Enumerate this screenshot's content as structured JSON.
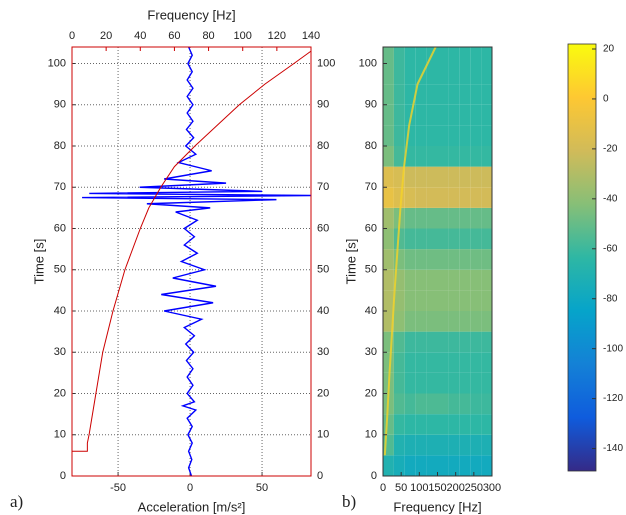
{
  "chart_data": [
    {
      "type": "line",
      "panel_label": "a)",
      "xlabel": "Acceleration [m/s²]",
      "x2label": "Frequency [Hz]",
      "ylabel": "Time [s]",
      "xlim": [
        -82,
        84
      ],
      "xticks": [
        -50,
        0,
        50
      ],
      "x2lim": [
        0,
        140
      ],
      "x2ticks": [
        0,
        20,
        40,
        60,
        80,
        100,
        120,
        140
      ],
      "ylim": [
        0,
        104
      ],
      "yticks": [
        0,
        10,
        20,
        30,
        40,
        50,
        60,
        70,
        80,
        90,
        100
      ],
      "grid": true,
      "mirror_yticks": true,
      "series": [
        {
          "color": "#0000ff",
          "y": [
            0,
            2,
            4,
            6,
            8,
            10,
            12,
            14,
            16,
            17,
            18,
            20,
            22,
            24,
            26,
            28,
            30,
            32,
            34,
            36,
            38,
            40,
            42,
            44,
            46,
            48,
            50,
            52,
            54,
            56,
            58,
            60,
            62,
            64,
            65,
            66,
            67,
            67.5,
            68,
            68.5,
            69,
            70,
            71,
            72,
            74,
            76,
            78,
            80,
            82,
            84,
            86,
            88,
            90,
            92,
            94,
            96,
            98,
            100,
            102,
            104
          ],
          "values": [
            1,
            -1,
            1.2,
            -1,
            1.5,
            -1.5,
            1.5,
            -2,
            4,
            -5,
            3,
            -2,
            2,
            -2,
            2,
            -2.5,
            2.5,
            -3,
            3,
            -4,
            8,
            -18,
            16,
            -20,
            18,
            -12,
            10,
            -6,
            5,
            -4,
            3,
            -4,
            5,
            -10,
            14,
            -30,
            60,
            -75,
            84,
            -70,
            50,
            -35,
            25,
            -18,
            15,
            -8,
            4,
            -3,
            2.5,
            -2.5,
            2,
            -2,
            2,
            -2,
            2,
            -2,
            1.5,
            -1.5,
            1.5,
            -1
          ]
        },
        {
          "color": "#cc0000",
          "axis": "x2",
          "y": [
            6,
            6,
            8,
            10,
            15,
            20,
            30,
            40,
            50,
            60,
            65,
            70,
            75,
            80,
            85,
            90,
            95,
            100,
            103
          ],
          "values": [
            0,
            9,
            9,
            10,
            12,
            14,
            18,
            24,
            31,
            40,
            45,
            52,
            60,
            72,
            85,
            98,
            113,
            130,
            140
          ]
        }
      ]
    },
    {
      "type": "heatmap",
      "panel_label": "b)",
      "xlabel": "Frequency [Hz]",
      "ylabel": "Time [s]",
      "xlim": [
        0,
        300
      ],
      "xticks": [
        0,
        50,
        100,
        150,
        200,
        250,
        300
      ],
      "ylim": [
        0,
        104
      ],
      "yticks": [
        0,
        10,
        20,
        30,
        40,
        50,
        60,
        70,
        80,
        90,
        100
      ],
      "xbins": [
        0,
        30,
        60,
        90,
        120,
        150,
        180,
        210,
        240,
        270,
        300
      ],
      "ybins": [
        0,
        5,
        10,
        15,
        20,
        25,
        30,
        35,
        40,
        45,
        50,
        55,
        60,
        65,
        70,
        75,
        80,
        85,
        90,
        95,
        100,
        104
      ],
      "values": [
        [
          -70,
          -75,
          -78,
          -78,
          -78,
          -78,
          -78,
          -78,
          -78,
          -78
        ],
        [
          -55,
          -70,
          -72,
          -72,
          -72,
          -72,
          -72,
          -72,
          -72,
          -72
        ],
        [
          -50,
          -62,
          -64,
          -64,
          -64,
          -64,
          -64,
          -64,
          -64,
          -64
        ],
        [
          -45,
          -55,
          -58,
          -56,
          -56,
          -56,
          -58,
          -58,
          -60,
          -60
        ],
        [
          -45,
          -58,
          -62,
          -62,
          -62,
          -62,
          -62,
          -62,
          -62,
          -62
        ],
        [
          -45,
          -58,
          -62,
          -62,
          -62,
          -62,
          -62,
          -62,
          -62,
          -62
        ],
        [
          -45,
          -55,
          -60,
          -60,
          -60,
          -60,
          -60,
          -60,
          -60,
          -60
        ],
        [
          -30,
          -40,
          -45,
          -45,
          -45,
          -45,
          -45,
          -45,
          -45,
          -45
        ],
        [
          -30,
          -38,
          -42,
          -42,
          -42,
          -42,
          -42,
          -42,
          -42,
          -42
        ],
        [
          -30,
          -38,
          -42,
          -42,
          -42,
          -42,
          -42,
          -42,
          -42,
          -42
        ],
        [
          -35,
          -45,
          -48,
          -48,
          -48,
          -48,
          -48,
          -48,
          -48,
          -48
        ],
        [
          -40,
          -55,
          -58,
          -58,
          -58,
          -58,
          -58,
          -58,
          -58,
          -58
        ],
        [
          -35,
          -45,
          -50,
          -50,
          -50,
          -50,
          -50,
          -50,
          -50,
          -50
        ],
        [
          -10,
          -15,
          -18,
          -20,
          -20,
          -20,
          -20,
          -20,
          -20,
          -20
        ],
        [
          -15,
          -18,
          -22,
          -22,
          -22,
          -22,
          -22,
          -22,
          -22,
          -22
        ],
        [
          -45,
          -58,
          -62,
          -62,
          -62,
          -62,
          -62,
          -62,
          -62,
          -62
        ],
        [
          -50,
          -60,
          -64,
          -64,
          -64,
          -64,
          -64,
          -64,
          -64,
          -64
        ],
        [
          -50,
          -60,
          -64,
          -64,
          -64,
          -64,
          -64,
          -64,
          -64,
          -64
        ],
        [
          -50,
          -60,
          -64,
          -64,
          -64,
          -64,
          -64,
          -64,
          -64,
          -64
        ],
        [
          -50,
          -60,
          -64,
          -64,
          -64,
          -64,
          -64,
          -64,
          -64,
          -64
        ],
        [
          -50,
          -60,
          -64,
          -64,
          -64,
          -64,
          -64,
          -64,
          -64,
          -64
        ]
      ],
      "colormap": [
        "#352a87",
        "#0f5cdd",
        "#1481d6",
        "#06a4ca",
        "#2eb7a4",
        "#87bf77",
        "#d1bb59",
        "#fec832",
        "#f9fb0e"
      ],
      "clim": [
        -149,
        22
      ],
      "colorbar_ticks": [
        20,
        0,
        -20,
        -40,
        -60,
        -80,
        -100,
        -120,
        -140
      ],
      "series": [
        {
          "color": "#f5d327",
          "x": [
            5,
            12,
            18,
            25,
            32,
            40,
            48,
            58,
            72,
            95,
            145
          ],
          "values": [
            5,
            15,
            25,
            35,
            45,
            55,
            65,
            75,
            85,
            95,
            104
          ]
        }
      ]
    }
  ]
}
